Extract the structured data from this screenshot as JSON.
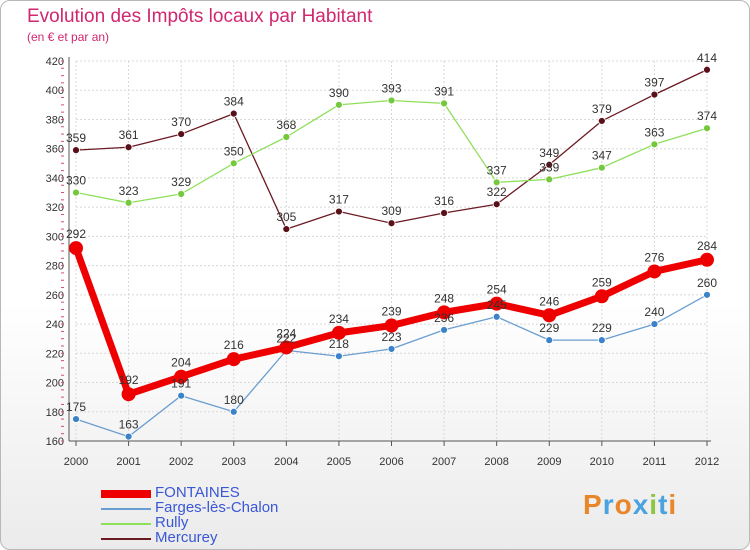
{
  "title": "Evolution des Impôts locaux par Habitant",
  "subtitle": "(en € et par an)",
  "logo": {
    "text": "Proxiti",
    "letters": [
      {
        "ch": "P",
        "color": "#e8862a"
      },
      {
        "ch": "r",
        "color": "#4aa3df"
      },
      {
        "ch": "o",
        "color": "#e8862a"
      },
      {
        "ch": "x",
        "color": "#4aa3df"
      },
      {
        "ch": "i",
        "color": "#8dc63f"
      },
      {
        "ch": "t",
        "color": "#4aa3df"
      },
      {
        "ch": "i",
        "color": "#e8862a"
      }
    ]
  },
  "chart_data": {
    "type": "line",
    "title": "Evolution des Impôts locaux par Habitant",
    "subtitle": "(en € et par an)",
    "xlabel": "",
    "ylabel": "",
    "categories": [
      "2000",
      "2001",
      "2002",
      "2003",
      "2004",
      "2005",
      "2006",
      "2007",
      "2008",
      "2009",
      "2010",
      "2011",
      "2012"
    ],
    "ylim": [
      160,
      420
    ],
    "yticks": [
      160,
      180,
      200,
      220,
      240,
      260,
      280,
      300,
      320,
      340,
      360,
      380,
      400,
      420
    ],
    "grid": true,
    "legend_position": "bottom-left",
    "series": [
      {
        "name": "Mercurey",
        "color": "#6b1a24",
        "marker": "#5a1018",
        "width": 1.3,
        "radius": 3.5,
        "values": [
          359,
          361,
          370,
          384,
          305,
          317,
          309,
          316,
          322,
          349,
          379,
          397,
          414
        ]
      },
      {
        "name": "Rully",
        "color": "#8ee05a",
        "marker": "#74c83c",
        "width": 1.3,
        "radius": 3.5,
        "values": [
          330,
          323,
          329,
          350,
          368,
          390,
          393,
          391,
          337,
          339,
          347,
          363,
          374
        ]
      },
      {
        "name": "Farges-lès-Chalon",
        "color": "#6a9ed0",
        "marker": "#3c82c8",
        "width": 1.3,
        "radius": 3.5,
        "values": [
          175,
          163,
          191,
          180,
          222,
          218,
          223,
          236,
          245,
          229,
          229,
          240,
          260
        ]
      },
      {
        "name": "FONTAINES",
        "color": "#ee0000",
        "marker": "#ee0000",
        "width": 7,
        "radius": 7,
        "values": [
          292,
          192,
          204,
          216,
          224,
          234,
          239,
          248,
          254,
          246,
          259,
          276,
          284
        ]
      }
    ],
    "legend_order": [
      "FONTAINES",
      "Farges-lès-Chalon",
      "Rully",
      "Mercurey"
    ]
  }
}
